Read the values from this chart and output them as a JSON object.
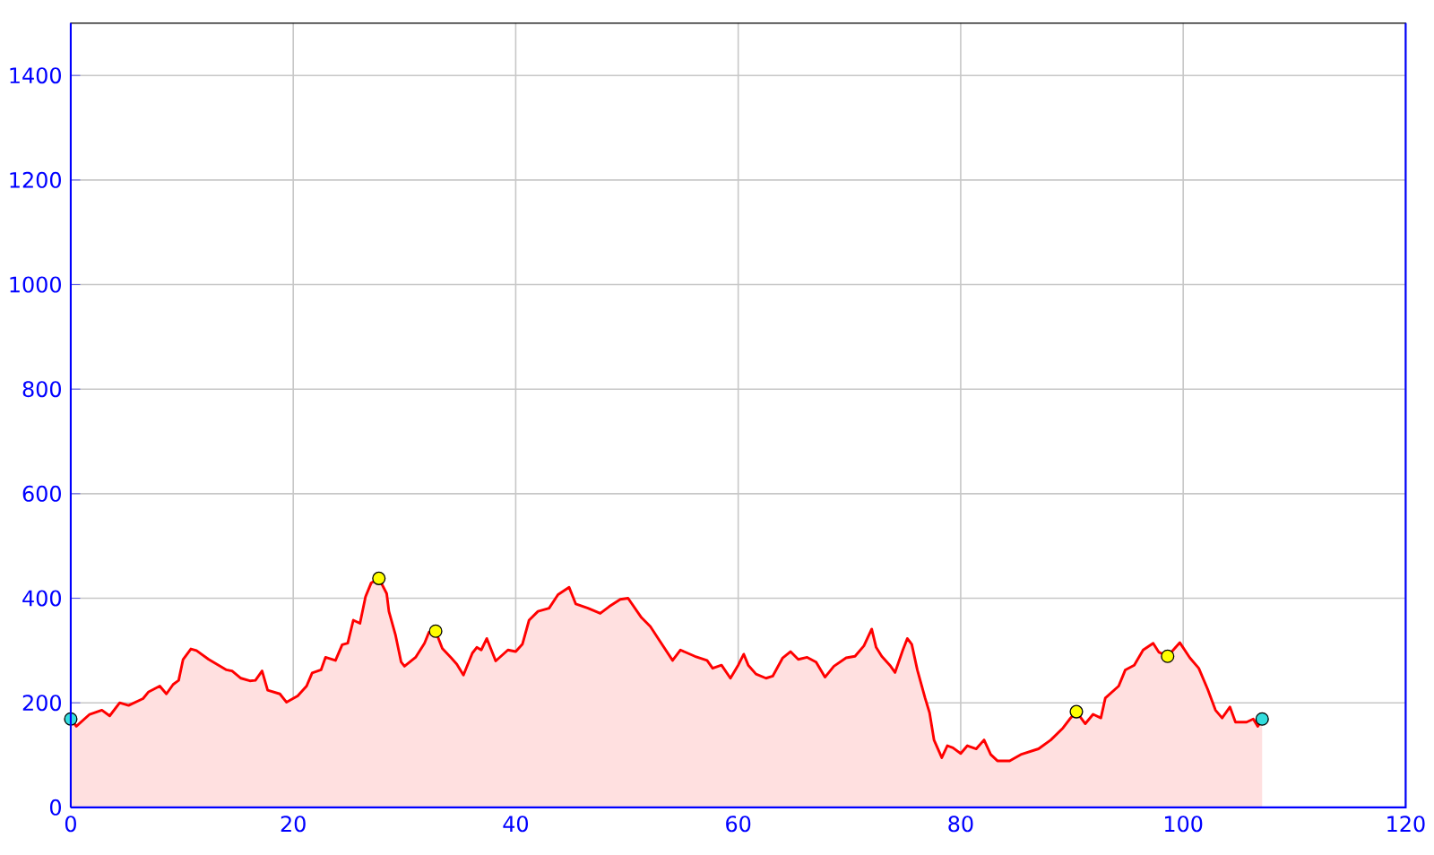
{
  "chart_data": {
    "type": "area",
    "xlim": [
      0,
      120
    ],
    "ylim": [
      0,
      1500
    ],
    "xticks": [
      0,
      20,
      40,
      60,
      80,
      100,
      120
    ],
    "yticks": [
      0,
      200,
      400,
      600,
      800,
      1000,
      1200,
      1400
    ],
    "grid": true,
    "series": [
      {
        "color": "#ff0000",
        "x": [
          0,
          0.5,
          1.7,
          2.8,
          3.5,
          4.4,
          5.2,
          6.5,
          7.0,
          8,
          8.6,
          9.2,
          9.7,
          10.1,
          10.8,
          11.3,
          12.4,
          14,
          14.5,
          15.3,
          16.1,
          16.6,
          17.2,
          17.7,
          18.8,
          19.4,
          20.4,
          21.2,
          21.7,
          22.5,
          22.9,
          23.8,
          24.4,
          24.9,
          25.4,
          26.0,
          26.5,
          27.0,
          27.7,
          28.4,
          28.6,
          29.2,
          29.7,
          30.0,
          31.0,
          31.8,
          32.2,
          32.8,
          33.4,
          34.2,
          34.7,
          35.3,
          36.1,
          36.5,
          36.9,
          37.4,
          38.2,
          39.3,
          40,
          40.6,
          41.2,
          42,
          43,
          43.8,
          44.8,
          45.4,
          46.5,
          47.6,
          48.4,
          49.4,
          50.1,
          51.3,
          52.1,
          52.9,
          54.1,
          54.8,
          56.1,
          57.2,
          57.7,
          58.5,
          59.3,
          60,
          60.5,
          60.9,
          61.6,
          62.5,
          63.1,
          64,
          64.7,
          65.4,
          66.2,
          67,
          67.8,
          68.6,
          69.7,
          70.5,
          71.3,
          72,
          72.4,
          72.9,
          73.7,
          74.1,
          74.8,
          75.2,
          75.6,
          76.1,
          76.8,
          77.2,
          77.6,
          78.3,
          78.8,
          79.3,
          80,
          80.6,
          81.4,
          82.1,
          82.7,
          83.3,
          84.4,
          85.4,
          87,
          88.1,
          89.2,
          89.8,
          90.4,
          91.2,
          91.9,
          92.6,
          93.0,
          94.2,
          94.8,
          95.6,
          96.4,
          97.3,
          97.8,
          98.6,
          99.7,
          100.6,
          101.4,
          102.2,
          102.9,
          103.5,
          104.2,
          104.7,
          105.7,
          106.3,
          106.7,
          107.1
        ],
        "values": [
          169,
          155,
          178,
          186,
          175,
          200,
          195,
          208,
          221,
          232,
          217,
          235,
          243,
          283,
          303,
          300,
          283,
          263,
          261,
          247,
          242,
          243,
          261,
          224,
          217,
          201,
          213,
          232,
          257,
          263,
          287,
          281,
          311,
          314,
          358,
          352,
          403,
          429,
          438,
          409,
          375,
          329,
          278,
          270,
          287,
          314,
          335,
          337,
          304,
          286,
          274,
          253,
          295,
          306,
          301,
          323,
          280,
          301,
          298,
          312,
          358,
          375,
          381,
          407,
          421,
          389,
          381,
          371,
          384,
          398,
          400,
          363,
          346,
          320,
          281,
          301,
          289,
          281,
          266,
          272,
          247,
          272,
          293,
          272,
          255,
          247,
          251,
          286,
          298,
          283,
          287,
          278,
          249,
          270,
          286,
          289,
          309,
          341,
          306,
          289,
          270,
          258,
          301,
          323,
          312,
          263,
          209,
          181,
          129,
          95,
          118,
          114,
          103,
          118,
          112,
          129,
          101,
          89,
          89,
          101,
          112,
          129,
          152,
          169,
          183,
          160,
          178,
          171,
          209,
          232,
          263,
          272,
          301,
          314,
          297,
          289,
          315,
          286,
          266,
          226,
          186,
          171,
          192,
          163,
          163,
          169,
          155,
          169
        ]
      },
      {
        "type": "scatter",
        "marker": "circle",
        "x": [
          0,
          27.7,
          32.8,
          90.4,
          98.6,
          107.1
        ],
        "values": [
          169,
          438,
          337,
          183,
          289,
          169
        ],
        "colors": [
          "#33dddd",
          "#ffff00",
          "#ffff00",
          "#ffff00",
          "#ffff00",
          "#33dddd"
        ]
      }
    ]
  }
}
